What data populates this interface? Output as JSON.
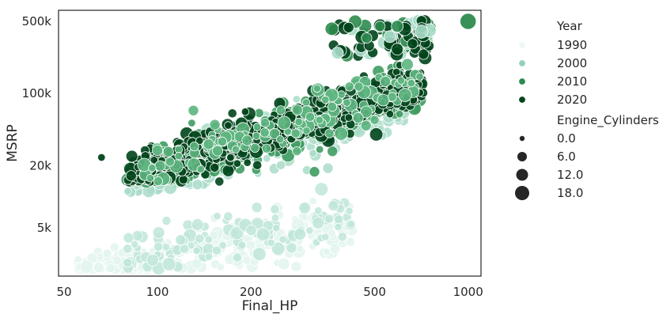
{
  "chart_data": {
    "type": "scatter",
    "title": "",
    "xlabel": "Final_HP",
    "ylabel": "MSRP",
    "x_scale": "log",
    "y_scale": "log",
    "xlim": [
      48,
      1100
    ],
    "ylim": [
      1700,
      640000
    ],
    "grid": false,
    "legend_placement": "right, outside plot",
    "x_ticks": [
      {
        "value": 50,
        "label": "50"
      },
      {
        "value": 100,
        "label": "100"
      },
      {
        "value": 200,
        "label": "200"
      },
      {
        "value": 500,
        "label": "500"
      },
      {
        "value": 1000,
        "label": "1000"
      }
    ],
    "y_ticks": [
      {
        "value": 5000,
        "label": "5k"
      },
      {
        "value": 20000,
        "label": "20k"
      },
      {
        "value": 100000,
        "label": "100k"
      },
      {
        "value": 500000,
        "label": "500k"
      }
    ],
    "hue": {
      "title": "Year",
      "entries": [
        {
          "label": "1990",
          "color": "#eef8f6"
        },
        {
          "label": "2000",
          "color": "#92d1b8"
        },
        {
          "label": "2010",
          "color": "#2e8b4f"
        },
        {
          "label": "2020",
          "color": "#00441b"
        }
      ]
    },
    "size": {
      "title": "Engine_Cylinders",
      "entries": [
        {
          "label": "0.0",
          "value": 0
        },
        {
          "label": "6.0",
          "value": 6
        },
        {
          "label": "12.0",
          "value": 12
        },
        {
          "label": "18.0",
          "value": 18
        }
      ]
    },
    "clusters": [
      {
        "name": "1990s",
        "color": "#e6f5f1",
        "hp_range": [
          55,
          420
        ],
        "msrp_range": [
          2000,
          7000
        ],
        "trend": "rising"
      },
      {
        "name": "2000s",
        "color": "#a6dcc8",
        "hp_range": [
          80,
          650
        ],
        "msrp_range": [
          2000,
          400000
        ],
        "trend": "rising"
      },
      {
        "name": "2010s",
        "color": "#2e8b4f",
        "hp_range": [
          70,
          700
        ],
        "msrp_range": [
          15000,
          500000
        ],
        "trend": "rising"
      },
      {
        "name": "2020s",
        "color": "#00441b",
        "hp_range": [
          65,
          760
        ],
        "msrp_range": [
          15000,
          500000
        ],
        "trend": "rising"
      }
    ],
    "highlighted_points": [
      {
        "x": 1000,
        "y": 500000,
        "cylinders": 16,
        "year": 2010
      },
      {
        "x": 66,
        "y": 24000,
        "cylinders": 4,
        "year": 2020
      }
    ]
  }
}
